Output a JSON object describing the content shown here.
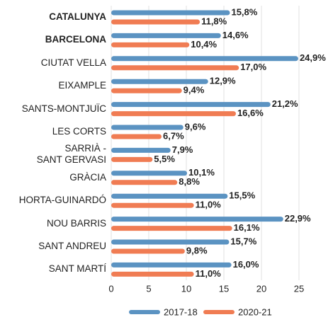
{
  "chart_data": {
    "type": "bar",
    "orientation": "horizontal",
    "categories": [
      "CATALUNYA",
      "BARCELONA",
      "CIUTAT VELLA",
      "EIXAMPLE",
      "SANTS-MONTJUÏC",
      "LES CORTS",
      "SARRIÀ -\nSANT GERVASI",
      "GRÀCIA",
      "HORTA-GUINARDÓ",
      "NOU BARRIS",
      "SANT ANDREU",
      "SANT MARTÍ"
    ],
    "highlight": [
      0,
      1
    ],
    "series": [
      {
        "name": "2017-18",
        "color": "#5b93c2",
        "values": [
          15.8,
          14.6,
          24.9,
          12.9,
          21.2,
          9.6,
          7.9,
          10.1,
          15.5,
          22.9,
          15.7,
          16.0
        ],
        "value_labels": [
          "15,8%",
          "14,6%",
          "24,9%",
          "12,9%",
          "21,2%",
          "9,6%",
          "7,9%",
          "10,1%",
          "15,5%",
          "22,9%",
          "15,7%",
          "16,0%"
        ]
      },
      {
        "name": "2020-21",
        "color": "#f07c53",
        "values": [
          11.8,
          10.4,
          17.0,
          9.4,
          16.6,
          6.7,
          5.5,
          8.8,
          11.0,
          16.1,
          9.8,
          11.0
        ],
        "value_labels": [
          "11,8%",
          "10,4%",
          "17,0%",
          "9,4%",
          "16,6%",
          "6,7%",
          "5,5%",
          "8,8%",
          "11,0%",
          "16,1%",
          "9,8%",
          "11,0%"
        ]
      }
    ],
    "xlim": [
      0,
      25
    ],
    "xticks": [
      0,
      5,
      10,
      15,
      20,
      25
    ],
    "grid": true
  }
}
